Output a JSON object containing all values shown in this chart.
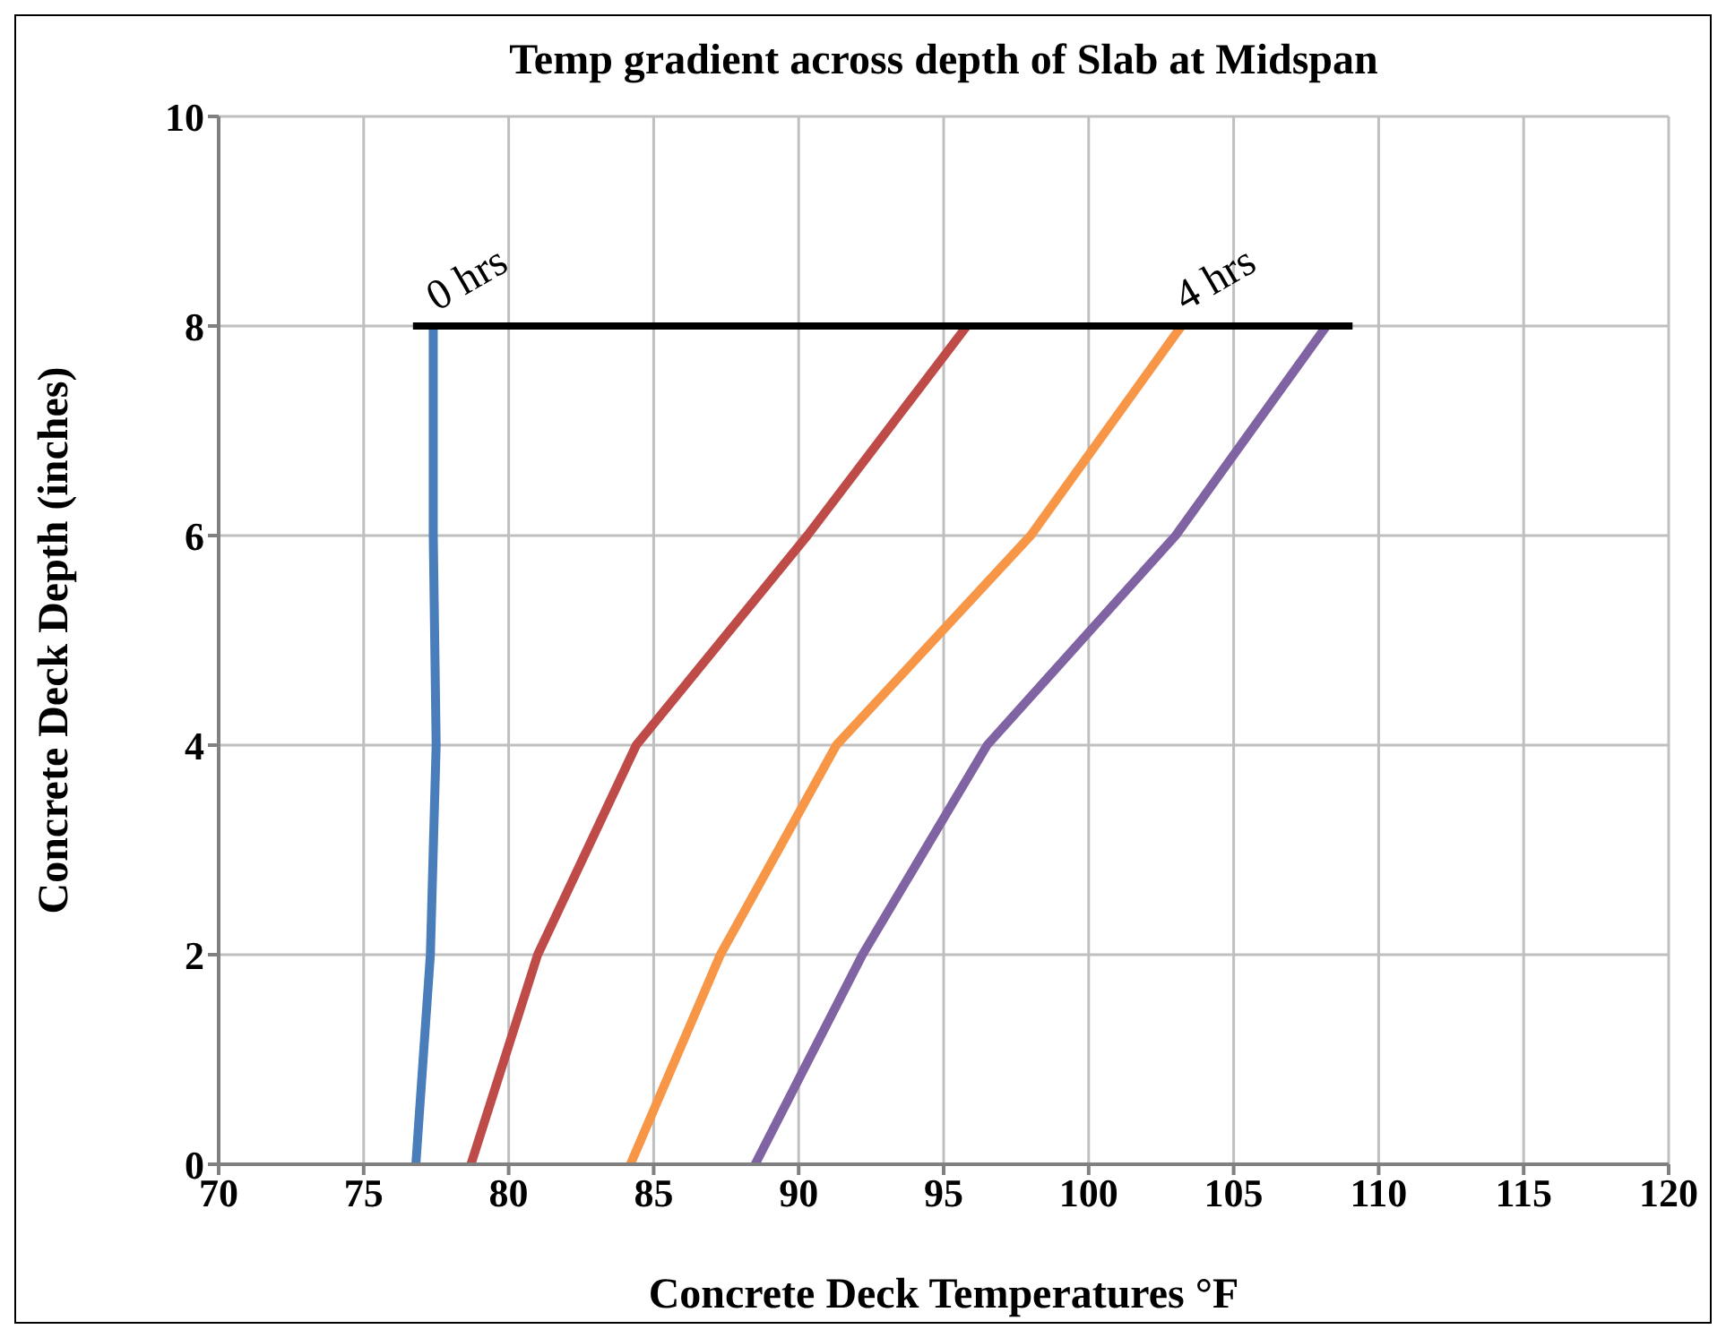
{
  "chart_data": {
    "type": "line",
    "title": "Temp gradient across depth of Slab at Midspan",
    "xlabel": "Concrete Deck Temperatures °F",
    "ylabel": "Concrete Deck Depth (inches)",
    "xlim": [
      70,
      120
    ],
    "xticks": [
      70,
      75,
      80,
      85,
      90,
      95,
      100,
      105,
      110,
      115,
      120
    ],
    "ylim": [
      0,
      10
    ],
    "yticks": [
      0,
      2,
      4,
      6,
      8,
      10
    ],
    "grid": true,
    "marker": "none",
    "line_style": "solid",
    "series": [
      {
        "color": "#4a7ebb",
        "x": [
          76.8,
          77.3,
          77.5,
          77.4,
          77.4
        ],
        "values": [
          0,
          2,
          4,
          6,
          8
        ]
      },
      {
        "color": "#be4b48",
        "x": [
          78.7,
          81.0,
          84.4,
          90.3,
          95.8
        ],
        "values": [
          0,
          2,
          4,
          6,
          8
        ]
      },
      {
        "color": "#f79646",
        "x": [
          84.2,
          87.3,
          91.3,
          98.0,
          103.2
        ],
        "values": [
          0,
          2,
          4,
          6,
          8
        ]
      },
      {
        "color": "#7f63a2",
        "x": [
          88.5,
          92.2,
          96.5,
          103.0,
          108.2
        ],
        "values": [
          0,
          2,
          4,
          6,
          8
        ]
      },
      {
        "color": "#000000",
        "x": [
          76.7,
          109.1
        ],
        "values": [
          8,
          8
        ]
      }
    ],
    "annotations": [
      {
        "text": "0 hrs",
        "x": 77.4,
        "y": 8
      },
      {
        "text": "4 hrs",
        "x": 103.2,
        "y": 8
      }
    ]
  }
}
